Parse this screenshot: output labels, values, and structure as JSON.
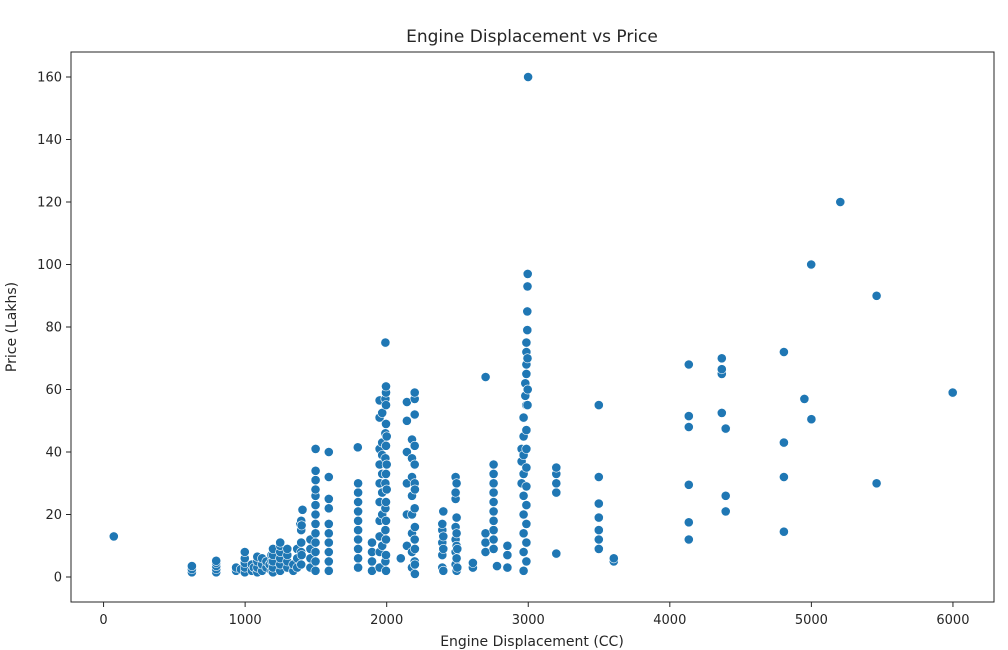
{
  "chart_data": {
    "type": "scatter",
    "title": "Engine Displacement vs Price",
    "xlabel": "Engine Displacement (CC)",
    "ylabel": "Price (Lakhs)",
    "xlim": [
      -230,
      6290
    ],
    "ylim": [
      -8,
      168
    ],
    "xticks": [
      0,
      1000,
      2000,
      3000,
      4000,
      5000,
      6000
    ],
    "yticks": [
      0,
      20,
      40,
      60,
      80,
      100,
      120,
      140,
      160
    ],
    "grid": false,
    "color": "#1f77b4",
    "points": [
      [
        72,
        13
      ],
      [
        624,
        1.5
      ],
      [
        624,
        2.5
      ],
      [
        624,
        3.5
      ],
      [
        796,
        1.5
      ],
      [
        796,
        2.5
      ],
      [
        796,
        3.5
      ],
      [
        796,
        4.5
      ],
      [
        796,
        5.2
      ],
      [
        936,
        2
      ],
      [
        936,
        3
      ],
      [
        970,
        2.5
      ],
      [
        998,
        1.5
      ],
      [
        998,
        3
      ],
      [
        998,
        4.5
      ],
      [
        998,
        6
      ],
      [
        998,
        8
      ],
      [
        1047,
        2
      ],
      [
        1047,
        4
      ],
      [
        1061,
        3
      ],
      [
        1086,
        1.5
      ],
      [
        1086,
        3
      ],
      [
        1086,
        5
      ],
      [
        1086,
        6.5
      ],
      [
        1120,
        2
      ],
      [
        1120,
        4
      ],
      [
        1120,
        6
      ],
      [
        1150,
        3
      ],
      [
        1150,
        5
      ],
      [
        1172,
        4
      ],
      [
        1186,
        2
      ],
      [
        1186,
        5
      ],
      [
        1186,
        7
      ],
      [
        1197,
        1.5
      ],
      [
        1197,
        3
      ],
      [
        1197,
        5
      ],
      [
        1197,
        7
      ],
      [
        1197,
        9
      ],
      [
        1248,
        2
      ],
      [
        1248,
        4
      ],
      [
        1248,
        6
      ],
      [
        1248,
        8
      ],
      [
        1248,
        10
      ],
      [
        1248,
        11
      ],
      [
        1298,
        3
      ],
      [
        1298,
        5
      ],
      [
        1298,
        7
      ],
      [
        1298,
        9
      ],
      [
        1340,
        2
      ],
      [
        1340,
        4
      ],
      [
        1368,
        3
      ],
      [
        1368,
        6
      ],
      [
        1368,
        9
      ],
      [
        1390,
        17
      ],
      [
        1396,
        4
      ],
      [
        1396,
        8
      ],
      [
        1396,
        11
      ],
      [
        1396,
        15
      ],
      [
        1396,
        18
      ],
      [
        1399,
        7
      ],
      [
        1399,
        16.5
      ],
      [
        1405,
        21.5
      ],
      [
        1461,
        3
      ],
      [
        1461,
        6
      ],
      [
        1461,
        9
      ],
      [
        1461,
        12
      ],
      [
        1497,
        2
      ],
      [
        1497,
        5
      ],
      [
        1497,
        8
      ],
      [
        1497,
        11
      ],
      [
        1497,
        14
      ],
      [
        1497,
        17
      ],
      [
        1497,
        20
      ],
      [
        1497,
        23
      ],
      [
        1497,
        26
      ],
      [
        1497,
        28
      ],
      [
        1498,
        31
      ],
      [
        1498,
        34
      ],
      [
        1498,
        41
      ],
      [
        1591,
        2
      ],
      [
        1591,
        5
      ],
      [
        1591,
        8
      ],
      [
        1591,
        11
      ],
      [
        1591,
        14
      ],
      [
        1591,
        17
      ],
      [
        1591,
        22
      ],
      [
        1591,
        25
      ],
      [
        1591,
        32
      ],
      [
        1591,
        40
      ],
      [
        1796,
        41.5
      ],
      [
        1798,
        3
      ],
      [
        1798,
        6
      ],
      [
        1798,
        9
      ],
      [
        1798,
        12
      ],
      [
        1798,
        15
      ],
      [
        1798,
        18
      ],
      [
        1798,
        21
      ],
      [
        1798,
        24
      ],
      [
        1798,
        27
      ],
      [
        1798,
        30
      ],
      [
        1896,
        2
      ],
      [
        1896,
        5
      ],
      [
        1896,
        8
      ],
      [
        1896,
        11
      ],
      [
        1950,
        3
      ],
      [
        1950,
        8
      ],
      [
        1950,
        13
      ],
      [
        1950,
        18
      ],
      [
        1950,
        24
      ],
      [
        1950,
        30
      ],
      [
        1950,
        36
      ],
      [
        1950,
        41
      ],
      [
        1950,
        51
      ],
      [
        1950,
        56.5
      ],
      [
        1968,
        10
      ],
      [
        1968,
        20
      ],
      [
        1968,
        27
      ],
      [
        1968,
        33
      ],
      [
        1968,
        39
      ],
      [
        1968,
        43
      ],
      [
        1968,
        52.5
      ],
      [
        1991,
        5
      ],
      [
        1991,
        15
      ],
      [
        1991,
        22
      ],
      [
        1991,
        30
      ],
      [
        1991,
        38
      ],
      [
        1991,
        46
      ],
      [
        1991,
        57
      ],
      [
        1991,
        75
      ],
      [
        1995,
        2
      ],
      [
        1995,
        7
      ],
      [
        1995,
        12
      ],
      [
        1995,
        18
      ],
      [
        1995,
        24
      ],
      [
        1995,
        33
      ],
      [
        1995,
        42
      ],
      [
        1995,
        49
      ],
      [
        1995,
        55
      ],
      [
        1995,
        59
      ],
      [
        1995,
        61
      ],
      [
        2000,
        45
      ],
      [
        2000,
        36
      ],
      [
        2000,
        28
      ],
      [
        2100,
        6
      ],
      [
        2143,
        10
      ],
      [
        2143,
        20
      ],
      [
        2143,
        30
      ],
      [
        2143,
        40
      ],
      [
        2143,
        50
      ],
      [
        2143,
        56
      ],
      [
        2179,
        3
      ],
      [
        2179,
        8
      ],
      [
        2179,
        14
      ],
      [
        2179,
        20
      ],
      [
        2179,
        26
      ],
      [
        2179,
        32
      ],
      [
        2179,
        38
      ],
      [
        2179,
        44
      ],
      [
        2198,
        5
      ],
      [
        2198,
        12
      ],
      [
        2198,
        22
      ],
      [
        2198,
        30
      ],
      [
        2198,
        36
      ],
      [
        2198,
        42
      ],
      [
        2198,
        52
      ],
      [
        2198,
        57
      ],
      [
        2198,
        59
      ],
      [
        2199,
        1
      ],
      [
        2199,
        4
      ],
      [
        2199,
        9
      ],
      [
        2199,
        16
      ],
      [
        2199,
        28
      ],
      [
        2393,
        3
      ],
      [
        2393,
        7
      ],
      [
        2393,
        11
      ],
      [
        2393,
        15
      ],
      [
        2393,
        17
      ],
      [
        2400,
        2
      ],
      [
        2400,
        9
      ],
      [
        2400,
        13
      ],
      [
        2400,
        21
      ],
      [
        2487,
        4
      ],
      [
        2487,
        8
      ],
      [
        2487,
        12
      ],
      [
        2487,
        16
      ],
      [
        2487,
        25
      ],
      [
        2487,
        27
      ],
      [
        2487,
        32
      ],
      [
        2494,
        2
      ],
      [
        2494,
        6
      ],
      [
        2494,
        10
      ],
      [
        2494,
        14
      ],
      [
        2494,
        19
      ],
      [
        2494,
        30
      ],
      [
        2499,
        3
      ],
      [
        2499,
        9
      ],
      [
        2609,
        3
      ],
      [
        2609,
        4.5
      ],
      [
        2698,
        8
      ],
      [
        2698,
        11
      ],
      [
        2698,
        14
      ],
      [
        2699,
        64
      ],
      [
        2755,
        9
      ],
      [
        2755,
        12
      ],
      [
        2755,
        15
      ],
      [
        2755,
        18
      ],
      [
        2755,
        21
      ],
      [
        2755,
        24
      ],
      [
        2755,
        27
      ],
      [
        2755,
        30
      ],
      [
        2755,
        33
      ],
      [
        2755,
        36
      ],
      [
        2779,
        3.5
      ],
      [
        2853,
        3
      ],
      [
        2853,
        7
      ],
      [
        2853,
        10
      ],
      [
        2953,
        30
      ],
      [
        2953,
        37
      ],
      [
        2953,
        41
      ],
      [
        2967,
        2
      ],
      [
        2967,
        8
      ],
      [
        2967,
        14
      ],
      [
        2967,
        20
      ],
      [
        2967,
        26
      ],
      [
        2967,
        33
      ],
      [
        2967,
        39
      ],
      [
        2967,
        45
      ],
      [
        2967,
        51
      ],
      [
        2979,
        58
      ],
      [
        2979,
        62
      ],
      [
        2987,
        5
      ],
      [
        2987,
        11
      ],
      [
        2987,
        17
      ],
      [
        2987,
        23
      ],
      [
        2987,
        29
      ],
      [
        2987,
        35
      ],
      [
        2987,
        41
      ],
      [
        2987,
        47
      ],
      [
        2987,
        55
      ],
      [
        2987,
        65
      ],
      [
        2987,
        68
      ],
      [
        2987,
        72
      ],
      [
        2987,
        75
      ],
      [
        2993,
        85
      ],
      [
        2995,
        93
      ],
      [
        2996,
        97
      ],
      [
        2999,
        160
      ],
      [
        2993,
        79
      ],
      [
        2995,
        70
      ],
      [
        2995,
        55
      ],
      [
        2996,
        60
      ],
      [
        3198,
        7.5
      ],
      [
        3198,
        27
      ],
      [
        3198,
        30
      ],
      [
        3198,
        33
      ],
      [
        3198,
        35
      ],
      [
        3498,
        9
      ],
      [
        3498,
        12
      ],
      [
        3498,
        15
      ],
      [
        3498,
        19
      ],
      [
        3498,
        23.5
      ],
      [
        3498,
        32
      ],
      [
        3498,
        55
      ],
      [
        3604,
        5
      ],
      [
        3604,
        6
      ],
      [
        4134,
        12
      ],
      [
        4134,
        17.5
      ],
      [
        4134,
        29.5
      ],
      [
        4134,
        48
      ],
      [
        4134,
        51.5
      ],
      [
        4134,
        68
      ],
      [
        4367,
        52.5
      ],
      [
        4367,
        65
      ],
      [
        4367,
        66.5
      ],
      [
        4367,
        70
      ],
      [
        4395,
        21
      ],
      [
        4395,
        26
      ],
      [
        4395,
        47.5
      ],
      [
        4806,
        14.5
      ],
      [
        4806,
        32
      ],
      [
        4806,
        43
      ],
      [
        4806,
        72
      ],
      [
        4951,
        57
      ],
      [
        4999,
        100
      ],
      [
        5000,
        50.5
      ],
      [
        5204,
        120
      ],
      [
        5461,
        30
      ],
      [
        5461,
        90
      ],
      [
        5998,
        59
      ]
    ]
  }
}
